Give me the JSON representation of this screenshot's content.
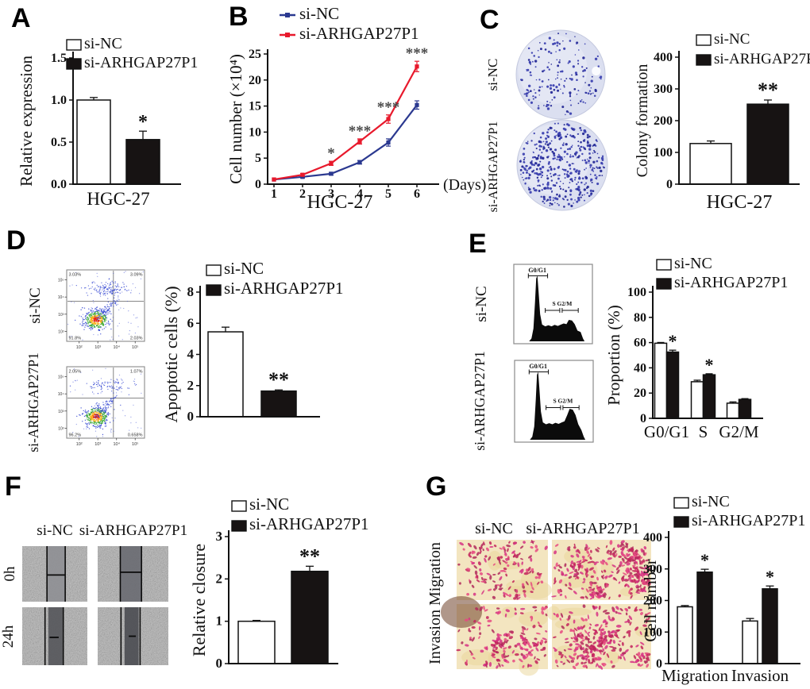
{
  "figure_title": "",
  "groups": {
    "control": "si-NC",
    "knockdown": "si-ARHGAP27P1"
  },
  "colors": {
    "bar_control_fill": "#ffffff",
    "bar_knockdown_fill": "#171313",
    "line_control": "#2b3990",
    "line_knockdown": "#e8192c",
    "axis": "#111111",
    "colony_stain": "#3c41b0",
    "transwell_stain": "#d63384"
  },
  "panels": {
    "A": {
      "letter": "A"
    },
    "B": {
      "letter": "B"
    },
    "C": {
      "letter": "C",
      "image_row_labels": [
        "si-NC",
        "si-ARHGAP27P1"
      ]
    },
    "D": {
      "letter": "D",
      "image_row_labels": [
        "si-NC",
        "si-ARHGAP27P1"
      ],
      "flow_axis_ticks": [
        "10²",
        "10³",
        "10⁴",
        "10⁵"
      ],
      "flow_quadrant_values": {
        "si_nc": {
          "upper_left": "3.03%",
          "upper_right": "3.09%",
          "lower_left": "91.8%",
          "lower_right": "2.03%"
        },
        "si_arhgap27p1": {
          "upper_left": "2.05%",
          "upper_right": "1.07%",
          "lower_left": "96.2%",
          "lower_right": "0.658%"
        }
      }
    },
    "E": {
      "letter": "E",
      "image_row_labels": [
        "si-NC",
        "si-ARHGAP27P1"
      ],
      "hist_annotations": {
        "g0g1": "G0/G1",
        "s_g2m": "S G2/M"
      }
    },
    "F": {
      "letter": "F",
      "image_col_labels": [
        "si-NC",
        "si-ARHGAP27P1"
      ],
      "image_row_labels": [
        "0h",
        "24h"
      ]
    },
    "G": {
      "letter": "G",
      "image_col_labels": [
        "si-NC",
        "si-ARHGAP27P1"
      ],
      "image_row_label": "Invasion Migration"
    }
  },
  "chart_data": [
    {
      "panel": "A",
      "type": "bar",
      "ylabel": "Relative expression",
      "ylim": [
        0,
        1.5
      ],
      "yticks": [
        "0.0",
        "0.5",
        "1.0",
        "1.5"
      ],
      "categories": [
        "HGC-27"
      ],
      "series": [
        {
          "name": "si-NC",
          "values": [
            1.0
          ],
          "errors": [
            0.03
          ]
        },
        {
          "name": "si-ARHGAP27P1",
          "values": [
            0.53
          ],
          "errors": [
            0.1
          ]
        }
      ],
      "significance": [
        {
          "series": "si-ARHGAP27P1",
          "stars": "*"
        }
      ]
    },
    {
      "panel": "B",
      "type": "line",
      "ylabel": "Cell number (×10⁴)",
      "xlabel": "(Days)",
      "sublabel": "HGC-27",
      "ylim": [
        0,
        25
      ],
      "yticks": [
        "0",
        "5",
        "10",
        "15",
        "20",
        "25"
      ],
      "x": [
        1,
        2,
        3,
        4,
        5,
        6
      ],
      "series": [
        {
          "name": "si-NC",
          "color": "#2b3990",
          "values": [
            0.9,
            1.4,
            2.0,
            4.2,
            8.0,
            15.2
          ],
          "errors": [
            0.15,
            0.2,
            0.25,
            0.35,
            0.7,
            0.8
          ]
        },
        {
          "name": "si-ARHGAP27P1",
          "color": "#e8192c",
          "values": [
            0.9,
            1.8,
            4.0,
            8.2,
            12.5,
            22.6
          ],
          "errors": [
            0.15,
            0.25,
            0.4,
            0.5,
            0.8,
            1.0
          ]
        }
      ],
      "significance": [
        {
          "day": 3,
          "stars": "*"
        },
        {
          "day": 4,
          "stars": "***"
        },
        {
          "day": 5,
          "stars": "***"
        },
        {
          "day": 6,
          "stars": "***"
        }
      ]
    },
    {
      "panel": "C",
      "type": "bar",
      "ylabel": "Colony formation",
      "ylim": [
        0,
        400
      ],
      "yticks": [
        "0",
        "100",
        "200",
        "300",
        "400"
      ],
      "categories": [
        "HGC-27"
      ],
      "series": [
        {
          "name": "si-NC",
          "values": [
            128
          ],
          "errors": [
            8
          ]
        },
        {
          "name": "si-ARHGAP27P1",
          "values": [
            252
          ],
          "errors": [
            13
          ]
        }
      ],
      "significance": [
        {
          "series": "si-ARHGAP27P1",
          "stars": "**"
        }
      ]
    },
    {
      "panel": "D",
      "type": "bar",
      "ylabel": "Apoptotic cells (%)",
      "ylim": [
        0,
        8
      ],
      "yticks": [
        "0",
        "2",
        "4",
        "6",
        "8"
      ],
      "categories": [
        ""
      ],
      "series": [
        {
          "name": "si-NC",
          "values": [
            5.45
          ],
          "errors": [
            0.3
          ]
        },
        {
          "name": "si-ARHGAP27P1",
          "values": [
            1.65
          ],
          "errors": [
            0.07
          ]
        }
      ],
      "significance": [
        {
          "series": "si-ARHGAP27P1",
          "stars": "**"
        }
      ]
    },
    {
      "panel": "E",
      "type": "bar",
      "ylabel": "Proportion (%)",
      "ylim": [
        0,
        100
      ],
      "yticks": [
        "0",
        "20",
        "40",
        "60",
        "80",
        "100"
      ],
      "categories": [
        "G0/G1",
        "S",
        "G2/M"
      ],
      "series": [
        {
          "name": "si-NC",
          "values": [
            59.5,
            29,
            12
          ],
          "errors": [
            0.6,
            1.2,
            1.0
          ]
        },
        {
          "name": "si-ARHGAP27P1",
          "values": [
            52.5,
            34.5,
            15
          ],
          "errors": [
            1.5,
            0.8,
            0.6
          ]
        }
      ],
      "significance": [
        {
          "category": "G0/G1",
          "stars": "*"
        },
        {
          "category": "S",
          "stars": "*"
        }
      ]
    },
    {
      "panel": "F",
      "type": "bar",
      "ylabel": "Relative closure",
      "ylim": [
        0,
        3
      ],
      "yticks": [
        "0",
        "1",
        "2",
        "3"
      ],
      "categories": [
        ""
      ],
      "series": [
        {
          "name": "si-NC",
          "values": [
            1.0
          ],
          "errors": [
            0.02
          ]
        },
        {
          "name": "si-ARHGAP27P1",
          "values": [
            2.18
          ],
          "errors": [
            0.12
          ]
        }
      ],
      "significance": [
        {
          "series": "si-ARHGAP27P1",
          "stars": "**"
        }
      ]
    },
    {
      "panel": "G",
      "type": "bar",
      "ylabel": "Cell number",
      "ylim": [
        0,
        400
      ],
      "yticks": [
        "0",
        "100",
        "200",
        "300",
        "400"
      ],
      "categories": [
        "Migration",
        "Invasion"
      ],
      "series": [
        {
          "name": "si-NC",
          "values": [
            180,
            135
          ],
          "errors": [
            4,
            8
          ]
        },
        {
          "name": "si-ARHGAP27P1",
          "values": [
            290,
            237
          ],
          "errors": [
            9,
            9
          ]
        }
      ],
      "significance": [
        {
          "category": "Migration",
          "stars": "*"
        },
        {
          "category": "Invasion",
          "stars": "*"
        }
      ]
    }
  ]
}
